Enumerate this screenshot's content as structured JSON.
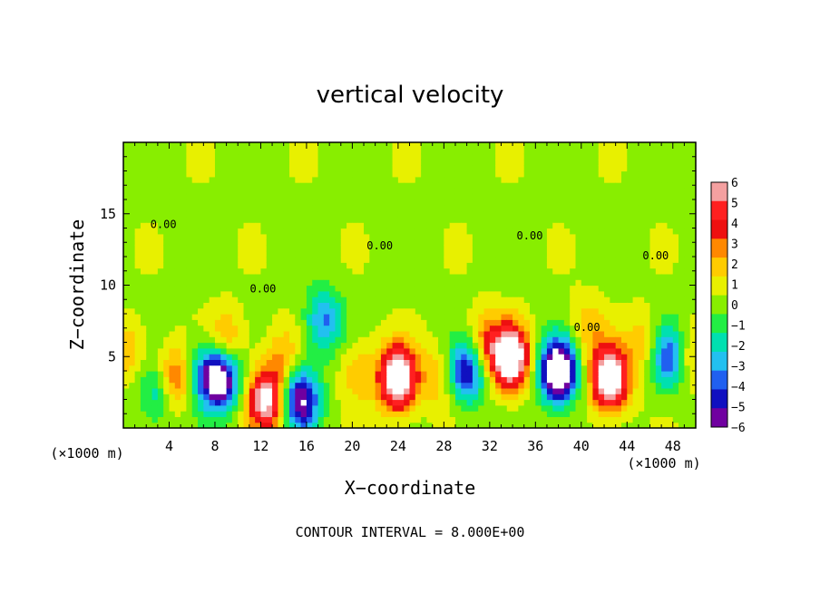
{
  "chart_data": {
    "type": "heatmap",
    "title": "vertical velocity",
    "xlabel": "X−coordinate",
    "ylabel": "Z−coordinate",
    "x_unit": "(×1000 m)",
    "x_ticks": [
      4,
      8,
      12,
      16,
      20,
      24,
      28,
      32,
      36,
      40,
      44,
      48
    ],
    "y_ticks": [
      5,
      10,
      15
    ],
    "xlim": [
      0,
      50
    ],
    "ylim": [
      0,
      20
    ],
    "note": "CONTOUR INTERVAL = 8.000E+00",
    "colorbar": {
      "labels": [
        "6",
        "5",
        "4",
        "3",
        "2",
        "1",
        "0",
        "−1",
        "−2",
        "−3",
        "−4",
        "−5",
        "−6"
      ],
      "levels": [
        6,
        5,
        4,
        3,
        2,
        1,
        0,
        -1,
        -2,
        -3,
        -4,
        -5,
        -6
      ],
      "colors": [
        "#f4a0a0",
        "#ff2020",
        "#ee1010",
        "#ff8800",
        "#ffcc00",
        "#e8f000",
        "#88ee00",
        "#22ee44",
        "#00e0b0",
        "#22c0f0",
        "#2060f0",
        "#1010c0",
        "#7000a0"
      ]
    },
    "contour_label": "0.00",
    "features": [
      {
        "x": 4.5,
        "z": 3.5,
        "w": 4
      },
      {
        "x": 6.8,
        "z": 3.8,
        "w": -3
      },
      {
        "x": 8.5,
        "z": 3.5,
        "w": -8
      },
      {
        "x": 9.0,
        "z": 6.0,
        "w": 3
      },
      {
        "x": 12.5,
        "z": 2.0,
        "w": 7
      },
      {
        "x": 14.0,
        "z": 5.0,
        "w": 2
      },
      {
        "x": 15.5,
        "z": 2.0,
        "w": -7
      },
      {
        "x": 17.5,
        "z": 7.5,
        "w": -4
      },
      {
        "x": 20.5,
        "z": 4.0,
        "w": 2
      },
      {
        "x": 24.0,
        "z": 3.5,
        "w": 9
      },
      {
        "x": 27.5,
        "z": 3.5,
        "w": 2
      },
      {
        "x": 30.0,
        "z": 4.0,
        "w": -6
      },
      {
        "x": 31.5,
        "z": 6.0,
        "w": 3
      },
      {
        "x": 33.8,
        "z": 5.0,
        "w": 9
      },
      {
        "x": 38.0,
        "z": 4.0,
        "w": -10
      },
      {
        "x": 40.5,
        "z": 7.0,
        "w": 2
      },
      {
        "x": 42.5,
        "z": 3.5,
        "w": 9
      },
      {
        "x": 45.5,
        "z": 6.0,
        "w": 2
      },
      {
        "x": 47.8,
        "z": 5.0,
        "w": -6
      },
      {
        "x": 49.0,
        "z": 5.0,
        "w": 3
      },
      {
        "x": 0.5,
        "z": 5.5,
        "w": 2
      },
      {
        "x": 3.0,
        "z": 2.5,
        "w": -3
      }
    ]
  }
}
